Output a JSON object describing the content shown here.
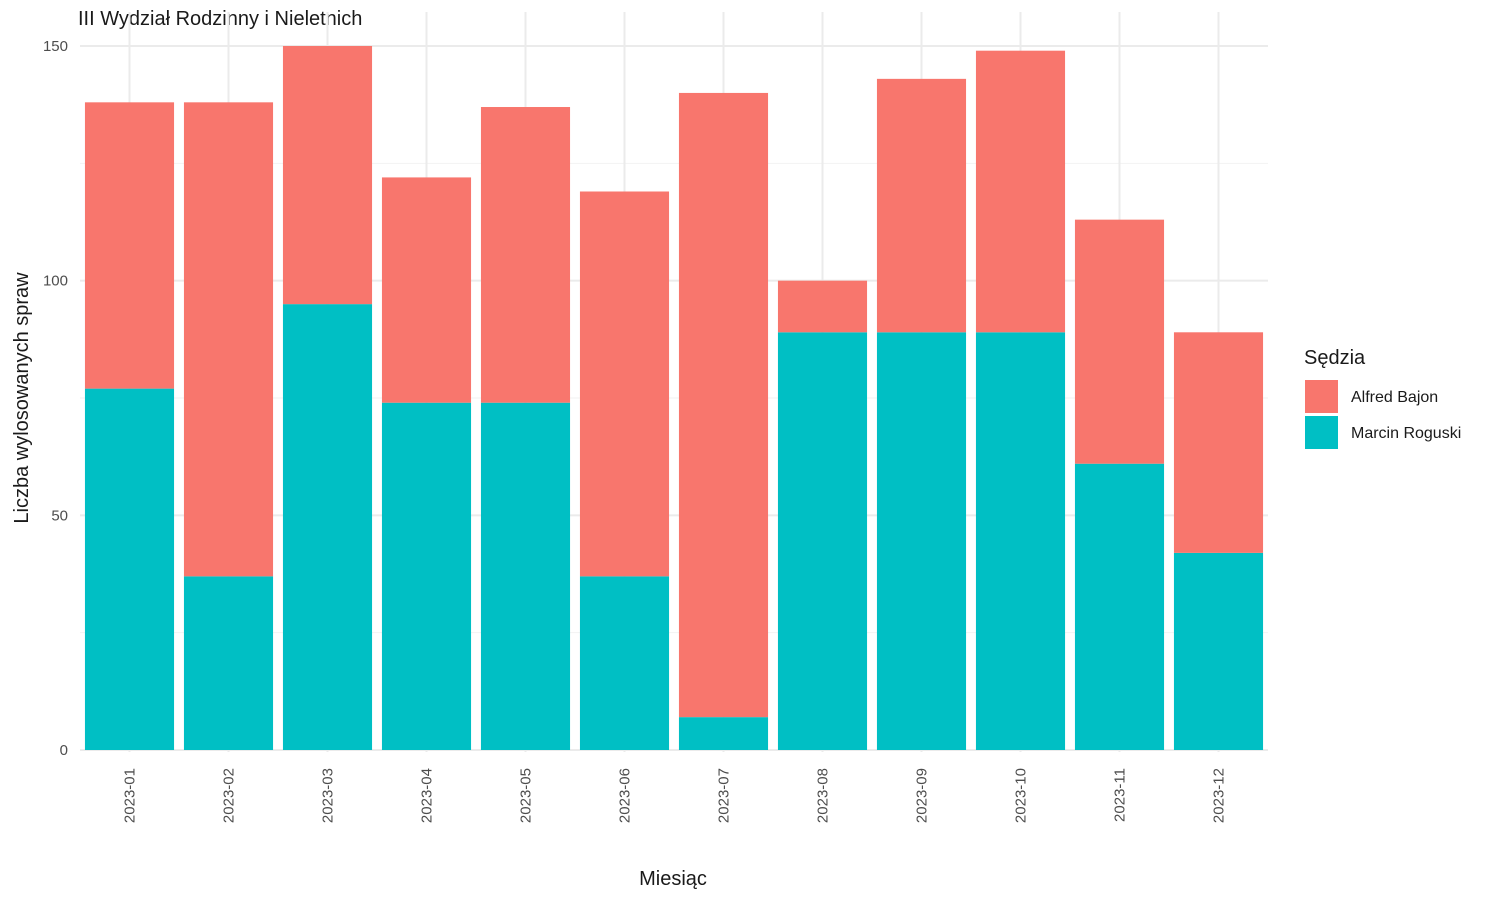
{
  "chart_data": {
    "type": "bar",
    "stacked": true,
    "title": "III Wydział Rodzinny i Nieletnich",
    "xlabel": "Miesiąc",
    "ylabel": "Liczba wylosowanych spraw",
    "ylim": [
      0,
      150
    ],
    "yticks": [
      0,
      50,
      100,
      150
    ],
    "grid": true,
    "legend": {
      "title": "Sędzia",
      "position": "right"
    },
    "categories": [
      "2023-01",
      "2023-02",
      "2023-03",
      "2023-04",
      "2023-05",
      "2023-06",
      "2023-07",
      "2023-08",
      "2023-09",
      "2023-10",
      "2023-11",
      "2023-12"
    ],
    "series": [
      {
        "name": "Marcin Roguski",
        "color": "#00BFC4",
        "values": [
          77,
          37,
          95,
          74,
          74,
          37,
          7,
          89,
          89,
          89,
          61,
          42
        ]
      },
      {
        "name": "Alfred Bajon",
        "color": "#F8766D",
        "values": [
          61,
          101,
          55,
          48,
          63,
          82,
          133,
          11,
          54,
          60,
          52,
          47
        ]
      }
    ]
  }
}
